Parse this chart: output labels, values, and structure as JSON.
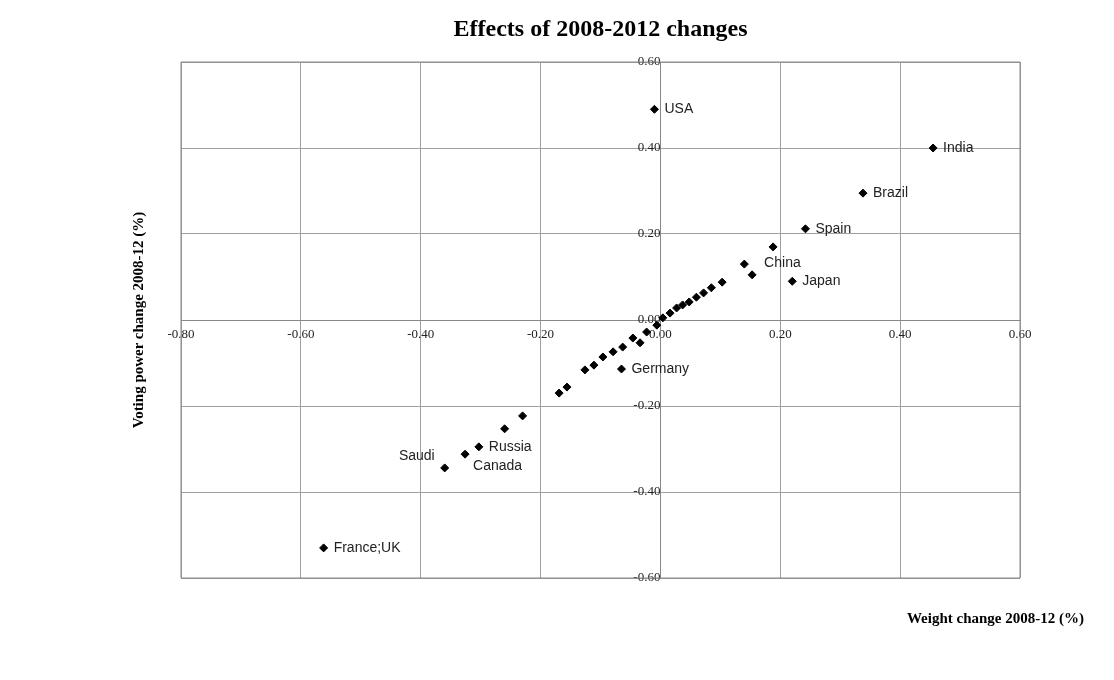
{
  "chart_data": {
    "type": "scatter",
    "title": "Effects of 2008-2012 changes",
    "xlabel": "Weight change 2008-12 (%)",
    "ylabel": "Voting power change 2008-12 (%)",
    "series": [
      {
        "color": "#000000",
        "x": [
          -0.01,
          0.455,
          0.338,
          0.242,
          0.22,
          0.188,
          0.14,
          0.153,
          0.103,
          0.085,
          0.072,
          0.06,
          0.048,
          0.037,
          0.027,
          0.016,
          0.004,
          -0.006,
          -0.023,
          -0.034,
          -0.046,
          -0.063,
          -0.079,
          -0.096,
          -0.111,
          -0.126,
          -0.156,
          -0.169,
          -0.23,
          -0.26,
          -0.303,
          -0.326,
          -0.36,
          -0.562,
          -0.065
        ],
        "values": [
          0.49,
          0.4,
          0.295,
          0.212,
          0.09,
          0.17,
          0.13,
          0.105,
          0.088,
          0.075,
          0.063,
          0.053,
          0.042,
          0.035,
          0.028,
          0.016,
          0.005,
          -0.012,
          -0.028,
          -0.053,
          -0.042,
          -0.063,
          -0.074,
          -0.086,
          -0.105,
          -0.116,
          -0.156,
          -0.17,
          -0.223,
          -0.253,
          -0.295,
          -0.312,
          -0.344,
          -0.53,
          -0.114
        ]
      }
    ],
    "annotations": [
      {
        "text": "USA",
        "x": -0.01,
        "y": 0.49
      },
      {
        "text": "India",
        "x": 0.455,
        "y": 0.4
      },
      {
        "text": "Brazil",
        "x": 0.338,
        "y": 0.295
      },
      {
        "text": "Spain",
        "x": 0.242,
        "y": 0.212
      },
      {
        "text": "Japan",
        "x": 0.22,
        "y": 0.09
      },
      {
        "text": "China",
        "x": 0.153,
        "y": 0.105
      },
      {
        "text": "Germany",
        "x": -0.065,
        "y": -0.114
      },
      {
        "text": "Russia",
        "x": -0.303,
        "y": -0.295
      },
      {
        "text": "Canada",
        "x": -0.326,
        "y": -0.312
      },
      {
        "text": "Saudi",
        "x": -0.36,
        "y": -0.344
      },
      {
        "text": "France;UK",
        "x": -0.562,
        "y": -0.53
      }
    ],
    "xlim": [
      -0.8,
      0.6
    ],
    "ylim": [
      -0.6,
      0.6
    ],
    "xticks": [
      {
        "value": -0.8,
        "label": "-0.80"
      },
      {
        "value": -0.6,
        "label": "-0.60"
      },
      {
        "value": -0.4,
        "label": "-0.40"
      },
      {
        "value": -0.2,
        "label": "-0.20"
      },
      {
        "value": 0,
        "label": "0.00"
      },
      {
        "value": 0.2,
        "label": "0.20"
      },
      {
        "value": 0.4,
        "label": "0.40"
      },
      {
        "value": 0.6,
        "label": "0.60"
      }
    ],
    "yticks": [
      {
        "value": -0.6,
        "label": "-0.60"
      },
      {
        "value": -0.4,
        "label": "-0.40"
      },
      {
        "value": -0.2,
        "label": "-0.20"
      },
      {
        "value": 0,
        "label": "0.00"
      },
      {
        "value": 0.2,
        "label": "0.20"
      },
      {
        "value": 0.4,
        "label": "0.40"
      },
      {
        "value": 0.6,
        "label": "0.60"
      }
    ],
    "grid": true,
    "legend": false,
    "marker": "diamond"
  }
}
